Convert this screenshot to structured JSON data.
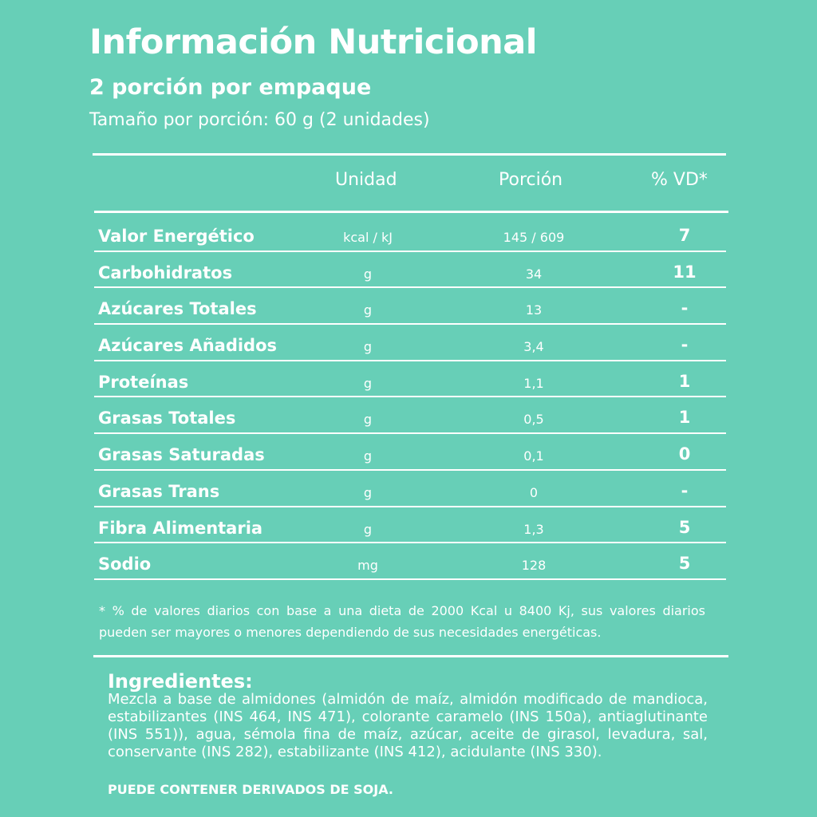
{
  "header": {
    "title": "Información Nutricional",
    "servings_per_package": "2 porción por empaque",
    "serving_size": "Tamaño por porción: 60 g (2 unidades)"
  },
  "table": {
    "columns": [
      "Unidad",
      "Porción",
      "% VD*"
    ],
    "rows": [
      {
        "name": "Valor Energético",
        "unit": "kcal / kJ",
        "portion": "145 / 609",
        "dv": "7"
      },
      {
        "name": "Carbohidratos",
        "unit": "g",
        "portion": "34",
        "dv": "11"
      },
      {
        "name": "Azúcares Totales",
        "unit": "g",
        "portion": "13",
        "dv": "-"
      },
      {
        "name": "Azúcares Añadidos",
        "unit": "g",
        "portion": "3,4",
        "dv": "-"
      },
      {
        "name": "Proteínas",
        "unit": "g",
        "portion": "1,1",
        "dv": "1"
      },
      {
        "name": "Grasas Totales",
        "unit": "g",
        "portion": "0,5",
        "dv": "1"
      },
      {
        "name": "Grasas Saturadas",
        "unit": "g",
        "portion": "0,1",
        "dv": "0"
      },
      {
        "name": "Grasas Trans",
        "unit": "g",
        "portion": "0",
        "dv": "-"
      },
      {
        "name": "Fibra Alimentaria",
        "unit": "g",
        "portion": "1,3",
        "dv": "5"
      },
      {
        "name": "Sodio",
        "unit": "mg",
        "portion": "128",
        "dv": "5"
      }
    ]
  },
  "footnote": "* % de valores diarios con base a una dieta de 2000 Kcal u 8400 Kj, sus valores diarios pueden ser mayores o menores dependiendo de sus necesidades energéticas.",
  "ingredients": {
    "title": "Ingredientes:",
    "text": "Mezcla a base de almidones (almidón de maíz, almidón modificado de mandioca, estabilizantes (INS 464, INS 471), colorante caramelo (INS 150a), antiaglutinante (INS 551)), agua, sémola fina de maíz, azúcar, aceite de girasol, levadura, sal, conservante (INS 282), estabilizante (INS 412), acidulante (INS 330).",
    "allergen": "PUEDE CONTENER DERIVADOS DE SOJA."
  },
  "colors": {
    "background": "#67cfb7",
    "text": "#ffffff"
  }
}
